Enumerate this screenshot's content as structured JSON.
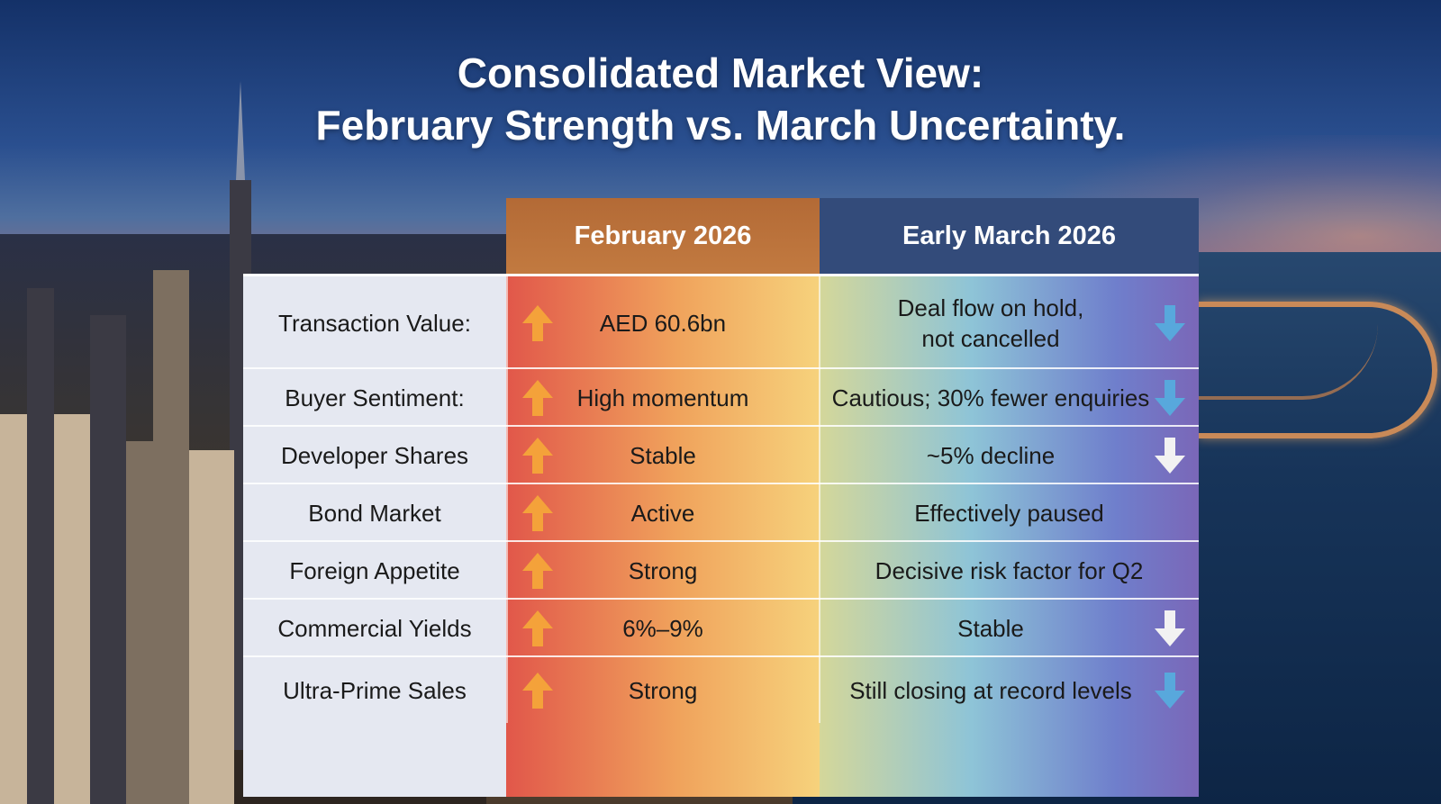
{
  "title": {
    "line1": "Consolidated Market View:",
    "line2": "February Strength vs. March Uncertainty."
  },
  "columns": {
    "feb": "February 2026",
    "mar": "Early March 2026"
  },
  "colors": {
    "up_arrow": "#f4a23a",
    "down_arrow_blue": "#58a8dc",
    "down_arrow_white": "#f2f2f2"
  },
  "rows": [
    {
      "label": "Transaction Value:",
      "feb": "AED 60.6bn",
      "mar": "Deal flow on hold,\nnot cancelled",
      "feb_trend": "up-arrow-icon",
      "mar_trend": "down-arrow-icon-blue"
    },
    {
      "label": "Buyer Sentiment:",
      "feb": "High momentum",
      "mar": "Cautious; 30% fewer enquiries",
      "feb_trend": "up-arrow-icon",
      "mar_trend": "down-arrow-icon-blue"
    },
    {
      "label": "Developer Shares",
      "feb": "Stable",
      "mar": "~5% decline",
      "feb_trend": "up-arrow-icon",
      "mar_trend": "down-arrow-icon-white"
    },
    {
      "label": "Bond Market",
      "feb": "Active",
      "mar": "Effectively paused",
      "feb_trend": "up-arrow-icon",
      "mar_trend": ""
    },
    {
      "label": "Foreign Appetite",
      "feb": "Strong",
      "mar": "Decisive risk factor for Q2",
      "feb_trend": "up-arrow-icon",
      "mar_trend": ""
    },
    {
      "label": "Commercial Yields",
      "feb": "6%–9%",
      "mar": "Stable",
      "feb_trend": "up-arrow-icon",
      "mar_trend": "down-arrow-icon-white"
    },
    {
      "label": "Ultra-Prime Sales",
      "feb": "Strong",
      "mar": "Still closing at record levels",
      "feb_trend": "up-arrow-icon",
      "mar_trend": "down-arrow-icon-blue"
    }
  ]
}
